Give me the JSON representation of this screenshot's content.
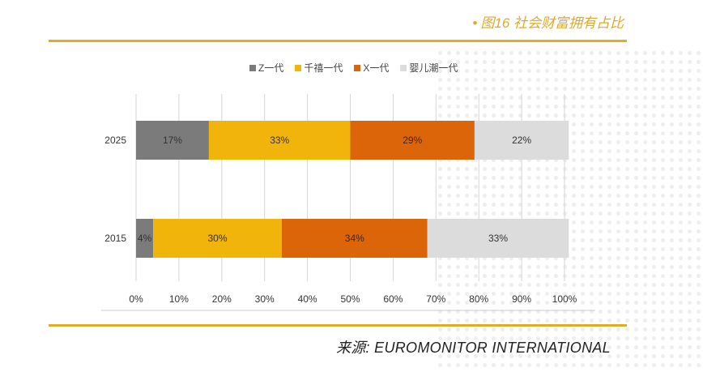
{
  "header": {
    "bullet": "•",
    "title": "图16 社会财富拥有占比"
  },
  "source": "来源: EUROMONITOR INTERNATIONAL",
  "chart_data": {
    "type": "bar",
    "orientation": "horizontal",
    "stacked": true,
    "title": "图16 社会财富拥有占比",
    "categories": [
      "2025",
      "2015"
    ],
    "series": [
      {
        "name": "Z一代",
        "color": "#7b7b7b",
        "values": [
          17,
          4
        ]
      },
      {
        "name": "千禧一代",
        "color": "#f0b40b",
        "values": [
          33,
          30
        ]
      },
      {
        "name": "X一代",
        "color": "#dc6409",
        "values": [
          29,
          34
        ]
      },
      {
        "name": "婴儿潮一代",
        "color": "#dcdcdc",
        "values": [
          22,
          33
        ]
      }
    ],
    "data_labels": [
      [
        "17%",
        "33%",
        "29%",
        "22%"
      ],
      [
        "4%",
        "30%",
        "34%",
        "33%"
      ]
    ],
    "xlim": [
      0,
      100
    ],
    "xticks": [
      "0%",
      "10%",
      "20%",
      "30%",
      "40%",
      "50%",
      "60%",
      "70%",
      "80%",
      "90%",
      "100%"
    ],
    "grid": true,
    "legend": "top"
  }
}
